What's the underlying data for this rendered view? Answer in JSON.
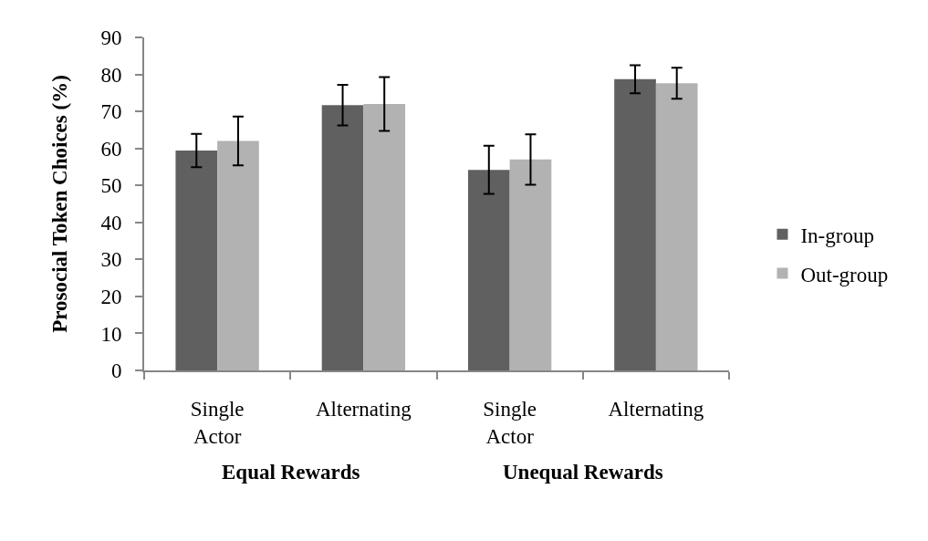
{
  "chart_data": {
    "type": "bar",
    "categories": [
      "Single Actor",
      "Alternating",
      "Single Actor",
      "Alternating"
    ],
    "series": [
      {
        "name": "In-group",
        "color": "#606060",
        "values": [
          59.4,
          71.7,
          54.2,
          78.7
        ],
        "errors": [
          4.5,
          5.5,
          6.5,
          3.8
        ]
      },
      {
        "name": "Out-group",
        "color": "#b2b2b2",
        "values": [
          62.0,
          72.0,
          57.0,
          77.6
        ],
        "errors": [
          6.6,
          7.3,
          6.8,
          4.2
        ]
      }
    ],
    "ylabel": "Prosocial Token Choices (%)",
    "ylim": [
      0,
      90
    ],
    "yticks": [
      0,
      10,
      20,
      30,
      40,
      50,
      60,
      70,
      80,
      90
    ],
    "annotations": [
      "Equal Rewards",
      "Unequal Rewards"
    ],
    "legend": "right"
  }
}
